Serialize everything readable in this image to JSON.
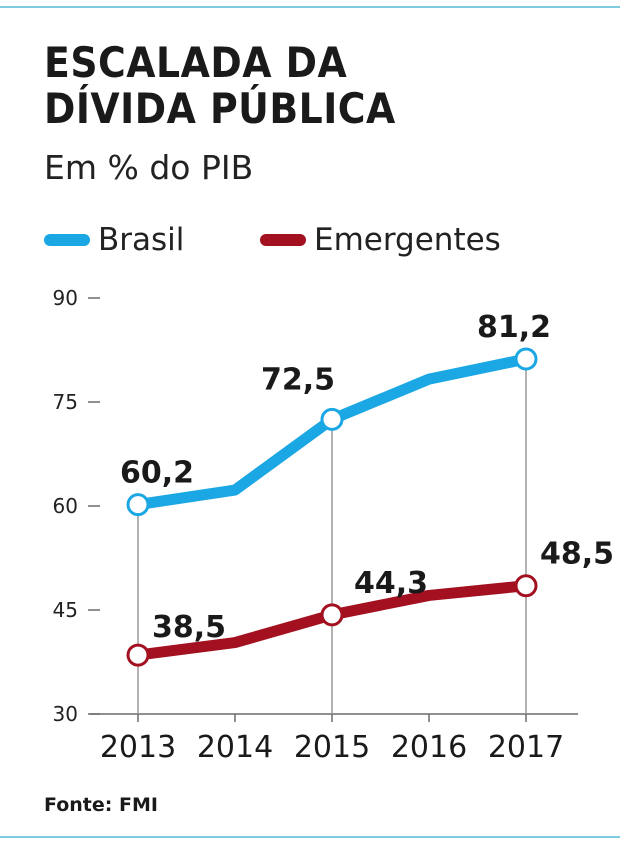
{
  "header": {
    "title_line1": "ESCALADA DA",
    "title_line2": "DÍVIDA PÚBLICA",
    "subtitle": "Em % do PIB"
  },
  "source": "Fonte: FMI",
  "colors": {
    "brasil": "#1aa7e3",
    "emergentes": "#a3101f",
    "rule": "#7ecbe0",
    "axis": "#6a6a6a"
  },
  "chart_data": {
    "type": "line",
    "title": "ESCALADA DA DÍVIDA PÚBLICA",
    "subtitle": "Em % do PIB",
    "x": [
      "2013",
      "2014",
      "2015",
      "2016",
      "2017"
    ],
    "ylim": [
      30,
      90
    ],
    "yticks": [
      30,
      45,
      60,
      75,
      90
    ],
    "grid": false,
    "legend_position": "top",
    "series": [
      {
        "name": "Brasil",
        "color": "#1aa7e3",
        "values": [
          60.2,
          62.3,
          72.5,
          78.3,
          81.2
        ],
        "labels": [
          "60,2",
          "",
          "72,5",
          "",
          "81,2"
        ],
        "markers": [
          true,
          false,
          true,
          false,
          true
        ]
      },
      {
        "name": "Emergentes",
        "color": "#a3101f",
        "values": [
          38.5,
          40.3,
          44.3,
          47.1,
          48.5
        ],
        "labels": [
          "38,5",
          "",
          "44,3",
          "",
          "48,5"
        ],
        "markers": [
          true,
          false,
          true,
          false,
          true
        ]
      }
    ]
  }
}
